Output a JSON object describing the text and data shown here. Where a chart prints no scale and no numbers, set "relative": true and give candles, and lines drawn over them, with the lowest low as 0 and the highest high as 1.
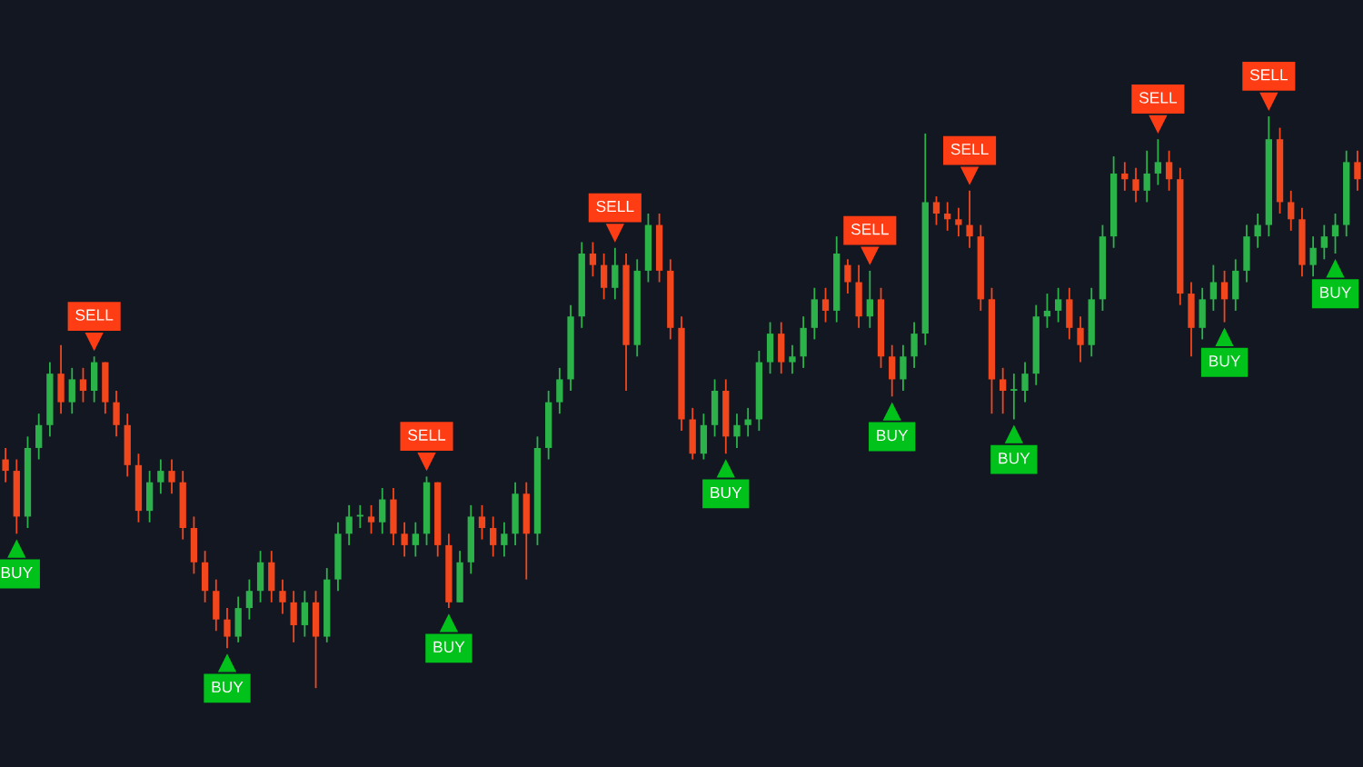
{
  "chart_data": {
    "type": "candlestick",
    "relative": true,
    "categories": [
      null,
      null,
      null,
      null,
      null,
      null,
      null,
      null,
      null,
      null,
      null,
      null,
      null,
      null,
      null,
      null,
      null,
      null,
      null,
      null,
      null,
      null,
      null,
      null,
      null,
      null,
      null,
      null,
      null,
      null,
      null,
      null,
      null,
      null,
      null,
      null,
      null,
      null,
      null,
      null,
      null,
      null,
      null,
      null,
      null,
      null,
      null,
      null,
      null,
      null,
      null,
      null,
      null,
      null,
      null,
      null,
      null,
      null,
      null,
      null,
      null,
      null,
      null,
      null,
      null,
      null,
      null,
      null,
      null,
      null,
      null,
      null,
      null,
      null,
      null,
      null,
      null,
      null,
      null,
      null,
      null,
      null,
      null,
      null,
      null,
      null,
      null,
      null,
      null,
      null,
      null,
      null,
      null,
      null,
      null,
      null,
      null,
      null,
      null,
      null,
      null,
      null,
      null,
      null,
      null,
      null,
      null,
      null,
      null,
      null,
      null,
      null,
      null,
      null,
      null,
      null,
      null,
      null,
      null,
      null,
      null,
      null,
      null
    ],
    "ohlc": [
      [
        0.4,
        0.42,
        0.36,
        0.38
      ],
      [
        0.38,
        0.4,
        0.27,
        0.3
      ],
      [
        0.3,
        0.44,
        0.28,
        0.42
      ],
      [
        0.42,
        0.48,
        0.4,
        0.46
      ],
      [
        0.46,
        0.57,
        0.44,
        0.55
      ],
      [
        0.55,
        0.6,
        0.48,
        0.5
      ],
      [
        0.5,
        0.56,
        0.48,
        0.54
      ],
      [
        0.54,
        0.56,
        0.5,
        0.52
      ],
      [
        0.52,
        0.58,
        0.5,
        0.57
      ],
      [
        0.57,
        0.57,
        0.48,
        0.5
      ],
      [
        0.5,
        0.52,
        0.44,
        0.46
      ],
      [
        0.46,
        0.48,
        0.37,
        0.39
      ],
      [
        0.39,
        0.41,
        0.29,
        0.31
      ],
      [
        0.31,
        0.38,
        0.29,
        0.36
      ],
      [
        0.36,
        0.4,
        0.34,
        0.38
      ],
      [
        0.38,
        0.4,
        0.34,
        0.36
      ],
      [
        0.36,
        0.38,
        0.26,
        0.28
      ],
      [
        0.28,
        0.3,
        0.2,
        0.22
      ],
      [
        0.22,
        0.24,
        0.15,
        0.17
      ],
      [
        0.17,
        0.19,
        0.1,
        0.12
      ],
      [
        0.12,
        0.14,
        0.07,
        0.09
      ],
      [
        0.09,
        0.16,
        0.08,
        0.14
      ],
      [
        0.14,
        0.19,
        0.12,
        0.17
      ],
      [
        0.17,
        0.24,
        0.15,
        0.22
      ],
      [
        0.22,
        0.24,
        0.15,
        0.17
      ],
      [
        0.17,
        0.19,
        0.13,
        0.15
      ],
      [
        0.15,
        0.17,
        0.08,
        0.11
      ],
      [
        0.11,
        0.17,
        0.09,
        0.15
      ],
      [
        0.15,
        0.17,
        0.0,
        0.09
      ],
      [
        0.09,
        0.21,
        0.08,
        0.19
      ],
      [
        0.19,
        0.29,
        0.17,
        0.27
      ],
      [
        0.27,
        0.32,
        0.25,
        0.3
      ],
      [
        0.3,
        0.32,
        0.28,
        0.3
      ],
      [
        0.3,
        0.32,
        0.27,
        0.29
      ],
      [
        0.29,
        0.35,
        0.27,
        0.33
      ],
      [
        0.33,
        0.35,
        0.25,
        0.27
      ],
      [
        0.27,
        0.29,
        0.23,
        0.25
      ],
      [
        0.25,
        0.29,
        0.23,
        0.27
      ],
      [
        0.27,
        0.37,
        0.25,
        0.36
      ],
      [
        0.36,
        0.36,
        0.23,
        0.25
      ],
      [
        0.25,
        0.27,
        0.14,
        0.15
      ],
      [
        0.15,
        0.24,
        0.15,
        0.22
      ],
      [
        0.22,
        0.32,
        0.2,
        0.3
      ],
      [
        0.3,
        0.32,
        0.26,
        0.28
      ],
      [
        0.28,
        0.3,
        0.23,
        0.25
      ],
      [
        0.25,
        0.29,
        0.23,
        0.27
      ],
      [
        0.27,
        0.36,
        0.25,
        0.34
      ],
      [
        0.34,
        0.36,
        0.19,
        0.27
      ],
      [
        0.27,
        0.44,
        0.25,
        0.42
      ],
      [
        0.42,
        0.52,
        0.4,
        0.5
      ],
      [
        0.5,
        0.56,
        0.48,
        0.54
      ],
      [
        0.54,
        0.67,
        0.52,
        0.65
      ],
      [
        0.65,
        0.78,
        0.63,
        0.76
      ],
      [
        0.76,
        0.78,
        0.72,
        0.74
      ],
      [
        0.74,
        0.76,
        0.68,
        0.7
      ],
      [
        0.7,
        0.77,
        0.68,
        0.74
      ],
      [
        0.74,
        0.76,
        0.52,
        0.6
      ],
      [
        0.6,
        0.75,
        0.58,
        0.73
      ],
      [
        0.73,
        0.83,
        0.71,
        0.81
      ],
      [
        0.81,
        0.83,
        0.71,
        0.73
      ],
      [
        0.73,
        0.75,
        0.61,
        0.63
      ],
      [
        0.63,
        0.65,
        0.45,
        0.47
      ],
      [
        0.47,
        0.49,
        0.4,
        0.41
      ],
      [
        0.41,
        0.48,
        0.4,
        0.46
      ],
      [
        0.46,
        0.54,
        0.44,
        0.52
      ],
      [
        0.52,
        0.54,
        0.41,
        0.44
      ],
      [
        0.44,
        0.48,
        0.42,
        0.46
      ],
      [
        0.46,
        0.49,
        0.44,
        0.47
      ],
      [
        0.47,
        0.59,
        0.45,
        0.57
      ],
      [
        0.57,
        0.64,
        0.55,
        0.62
      ],
      [
        0.62,
        0.64,
        0.55,
        0.57
      ],
      [
        0.57,
        0.6,
        0.55,
        0.58
      ],
      [
        0.58,
        0.65,
        0.56,
        0.63
      ],
      [
        0.63,
        0.7,
        0.61,
        0.68
      ],
      [
        0.68,
        0.7,
        0.64,
        0.66
      ],
      [
        0.66,
        0.79,
        0.64,
        0.76
      ],
      [
        0.74,
        0.75,
        0.69,
        0.71
      ],
      [
        0.71,
        0.74,
        0.63,
        0.65
      ],
      [
        0.65,
        0.73,
        0.63,
        0.68
      ],
      [
        0.68,
        0.7,
        0.56,
        0.58
      ],
      [
        0.58,
        0.6,
        0.51,
        0.54
      ],
      [
        0.54,
        0.6,
        0.52,
        0.58
      ],
      [
        0.58,
        0.64,
        0.56,
        0.62
      ],
      [
        0.62,
        0.97,
        0.6,
        0.85
      ],
      [
        0.85,
        0.86,
        0.81,
        0.83
      ],
      [
        0.83,
        0.85,
        0.8,
        0.82
      ],
      [
        0.82,
        0.84,
        0.79,
        0.81
      ],
      [
        0.81,
        0.87,
        0.77,
        0.79
      ],
      [
        0.79,
        0.81,
        0.66,
        0.68
      ],
      [
        0.68,
        0.7,
        0.48,
        0.54
      ],
      [
        0.54,
        0.56,
        0.48,
        0.52
      ],
      [
        0.52,
        0.55,
        0.47,
        0.52
      ],
      [
        0.52,
        0.57,
        0.5,
        0.55
      ],
      [
        0.55,
        0.67,
        0.53,
        0.65
      ],
      [
        0.65,
        0.69,
        0.63,
        0.66
      ],
      [
        0.66,
        0.7,
        0.64,
        0.68
      ],
      [
        0.68,
        0.7,
        0.61,
        0.63
      ],
      [
        0.63,
        0.65,
        0.57,
        0.6
      ],
      [
        0.6,
        0.7,
        0.58,
        0.68
      ],
      [
        0.68,
        0.81,
        0.66,
        0.79
      ],
      [
        0.79,
        0.93,
        0.77,
        0.9
      ],
      [
        0.9,
        0.92,
        0.87,
        0.89
      ],
      [
        0.89,
        0.91,
        0.85,
        0.87
      ],
      [
        0.87,
        0.94,
        0.85,
        0.9
      ],
      [
        0.9,
        0.96,
        0.88,
        0.92
      ],
      [
        0.92,
        0.94,
        0.87,
        0.89
      ],
      [
        0.89,
        0.91,
        0.67,
        0.69
      ],
      [
        0.69,
        0.71,
        0.58,
        0.63
      ],
      [
        0.63,
        0.7,
        0.61,
        0.68
      ],
      [
        0.68,
        0.74,
        0.66,
        0.71
      ],
      [
        0.71,
        0.73,
        0.64,
        0.68
      ],
      [
        0.68,
        0.75,
        0.66,
        0.73
      ],
      [
        0.73,
        0.81,
        0.71,
        0.79
      ],
      [
        0.79,
        0.83,
        0.77,
        0.81
      ],
      [
        0.81,
        1.0,
        0.79,
        0.96
      ],
      [
        0.96,
        0.98,
        0.83,
        0.85
      ],
      [
        0.85,
        0.87,
        0.8,
        0.82
      ],
      [
        0.82,
        0.84,
        0.72,
        0.74
      ],
      [
        0.74,
        0.79,
        0.72,
        0.77
      ],
      [
        0.77,
        0.81,
        0.75,
        0.79
      ],
      [
        0.79,
        0.83,
        0.76,
        0.81
      ],
      [
        0.81,
        0.94,
        0.79,
        0.92
      ],
      [
        0.92,
        0.94,
        0.87,
        0.89
      ]
    ],
    "colors": [
      "#f2461c",
      "#f2461c",
      "#2bb34a",
      "#2bb34a",
      "#2bb34a",
      "#f2461c",
      "#2bb34a",
      "#f2461c",
      "#2bb34a",
      "#f2461c",
      "#f2461c",
      "#f2461c",
      "#f2461c",
      "#2bb34a",
      "#2bb34a",
      "#f2461c",
      "#f2461c",
      "#f2461c",
      "#f2461c",
      "#f2461c",
      "#f2461c",
      "#2bb34a",
      "#2bb34a",
      "#2bb34a",
      "#f2461c",
      "#f2461c",
      "#f2461c",
      "#2bb34a",
      "#f2461c",
      "#2bb34a",
      "#2bb34a",
      "#2bb34a",
      "#2bb34a",
      "#f2461c",
      "#2bb34a",
      "#f2461c",
      "#f2461c",
      "#2bb34a",
      "#2bb34a",
      "#f2461c",
      "#f2461c",
      "#2bb34a",
      "#2bb34a",
      "#f2461c",
      "#f2461c",
      "#2bb34a",
      "#2bb34a",
      "#f2461c",
      "#2bb34a",
      "#2bb34a",
      "#2bb34a",
      "#2bb34a",
      "#2bb34a",
      "#f2461c",
      "#f2461c",
      "#2bb34a",
      "#f2461c",
      "#2bb34a",
      "#2bb34a",
      "#f2461c",
      "#f2461c",
      "#f2461c",
      "#f2461c",
      "#2bb34a",
      "#2bb34a",
      "#f2461c",
      "#2bb34a",
      "#2bb34a",
      "#2bb34a",
      "#2bb34a",
      "#f2461c",
      "#2bb34a",
      "#2bb34a",
      "#2bb34a",
      "#f2461c",
      "#2bb34a",
      "#f2461c",
      "#f2461c",
      "#2bb34a",
      "#f2461c",
      "#f2461c",
      "#2bb34a",
      "#2bb34a",
      "#2bb34a",
      "#f2461c",
      "#f2461c",
      "#f2461c",
      "#f2461c",
      "#f2461c",
      "#f2461c",
      "#f2461c",
      "#2bb34a",
      "#2bb34a",
      "#2bb34a",
      "#2bb34a",
      "#2bb34a",
      "#f2461c",
      "#f2461c",
      "#2bb34a",
      "#2bb34a",
      "#2bb34a",
      "#f2461c",
      "#f2461c",
      "#2bb34a",
      "#2bb34a",
      "#f2461c",
      "#f2461c",
      "#f2461c",
      "#2bb34a",
      "#2bb34a",
      "#f2461c",
      "#2bb34a",
      "#2bb34a",
      "#2bb34a",
      "#2bb34a",
      "#f2461c",
      "#f2461c",
      "#f2461c",
      "#2bb34a",
      "#2bb34a",
      "#2bb34a",
      "#2bb34a",
      "#f2461c"
    ],
    "annotations": [
      {
        "text": "BUY",
        "y": 0.27
      },
      {
        "text": "SELL",
        "y": 0.58
      },
      {
        "text": "BUY",
        "y": 0.07
      },
      {
        "text": "SELL",
        "y": 0.37
      },
      {
        "text": "BUY",
        "y": 0.14
      },
      {
        "text": "SELL",
        "y": 0.77
      },
      {
        "text": "BUY",
        "y": 0.41
      },
      {
        "text": "SELL",
        "y": 0.73
      },
      {
        "text": "BUY",
        "y": 0.51
      },
      {
        "text": "SELL",
        "y": 0.87
      },
      {
        "text": "BUY",
        "y": 0.47
      },
      {
        "text": "SELL",
        "y": 0.96
      },
      {
        "text": "BUY",
        "y": 0.64
      },
      {
        "text": "SELL",
        "y": 1.0
      },
      {
        "text": "BUY",
        "y": 0.76
      }
    ]
  }
}
